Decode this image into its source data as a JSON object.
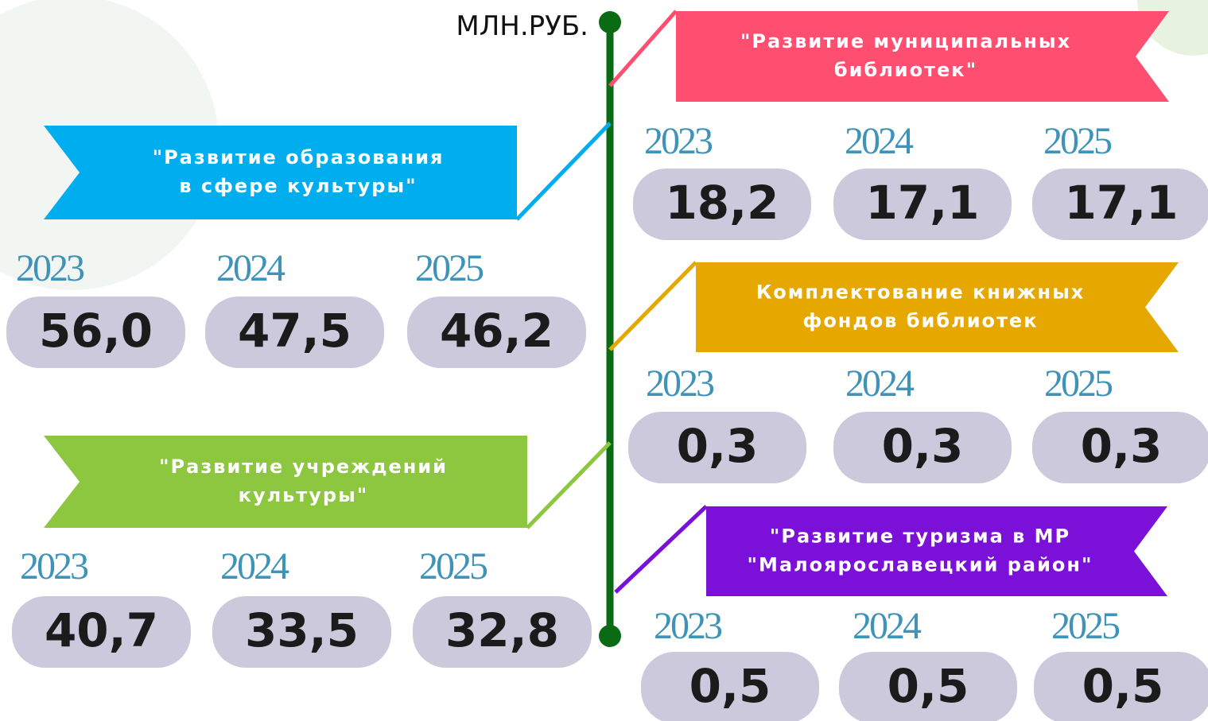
{
  "unit": "МЛН.РУБ.",
  "programs": [
    {
      "title": [
        "\"Развитие образования",
        "в сфере культуры\""
      ],
      "color": "#00aeef",
      "years": [
        "2023",
        "2024",
        "2025"
      ],
      "values": [
        "56,0",
        "47,5",
        "46,2"
      ]
    },
    {
      "title": [
        "\"Развитие учреждений",
        "культуры\""
      ],
      "color": "#8dc63f",
      "years": [
        "2023",
        "2024",
        "2025"
      ],
      "values": [
        "40,7",
        "33,5",
        "32,8"
      ]
    },
    {
      "title": [
        "\"Развитие муниципальных",
        "библиотек\""
      ],
      "color": "#ff4f70",
      "years": [
        "2023",
        "2024",
        "2025"
      ],
      "values": [
        "18,2",
        "17,1",
        "17,1"
      ]
    },
    {
      "title": [
        "Комплектование книжных",
        "фондов библиотек"
      ],
      "color": "#e6a800",
      "years": [
        "2023",
        "2024",
        "2025"
      ],
      "values": [
        "0,3",
        "0,3",
        "0,3"
      ]
    },
    {
      "title": [
        "\"Развитие туризма в МР",
        "\"Малоярославецкий район\""
      ],
      "color": "#7b10d8",
      "years": [
        "2023",
        "2024",
        "2025"
      ],
      "values": [
        "0,5",
        "0,5",
        "0,5"
      ]
    }
  ]
}
